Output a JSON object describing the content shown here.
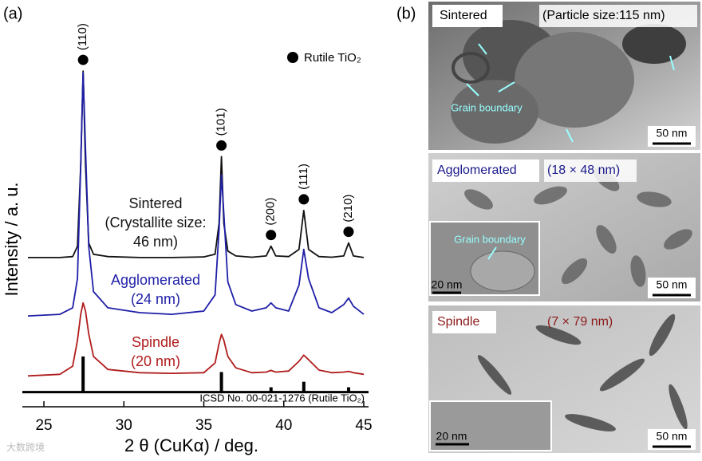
{
  "chart_data": {
    "type": "line",
    "panel_label": "(a)",
    "xlabel": "2 θ (CuKα) / deg.",
    "ylabel": "Intensity / a. u.",
    "xlim": [
      24,
      45
    ],
    "xticks": [
      25,
      30,
      35,
      40,
      45
    ],
    "ylim": [
      -5,
      100
    ],
    "x": [
      24,
      26,
      26.8,
      27.1,
      27.3,
      27.45,
      27.6,
      27.8,
      28.1,
      29,
      31,
      33,
      35,
      35.7,
      35.95,
      36.1,
      36.25,
      36.5,
      37,
      38,
      38.9,
      39.2,
      39.5,
      40.3,
      40.95,
      41.25,
      41.55,
      42.2,
      43,
      43.75,
      44.05,
      44.35,
      45
    ],
    "series": [
      {
        "name": "Sintered",
        "color": "#111111",
        "annotation": [
          "Sintered",
          "(Crystallite size:",
          "46 nm)"
        ],
        "values": [
          41.5,
          41.5,
          41.8,
          45,
          70,
          99,
          70,
          46,
          42.5,
          41.8,
          41.5,
          41.5,
          41.7,
          42.5,
          52,
          72.6,
          52,
          43.5,
          42,
          41.6,
          42,
          45,
          42,
          41.8,
          44,
          56,
          44,
          41.8,
          41.6,
          42,
          46,
          42,
          41.5
        ]
      },
      {
        "name": "Agglomerated",
        "color": "#1f1fa8",
        "annotation": [
          "Agglomerated",
          "(24 nm)"
        ],
        "values": [
          23.5,
          24,
          26,
          35,
          70,
          98.5,
          75,
          45,
          31,
          26,
          24.5,
          24,
          25,
          30,
          50,
          67,
          55,
          34,
          27,
          25,
          26,
          27.5,
          26,
          25,
          33,
          44,
          35,
          26,
          24.5,
          27,
          29,
          26.5,
          24
        ]
      },
      {
        "name": "Spindle",
        "color": "#b01c1c",
        "annotation": [
          "Spindle",
          "(20 nm)"
        ],
        "values": [
          5,
          5.5,
          8,
          16,
          24,
          27.5,
          25,
          18,
          11,
          7,
          6,
          5.8,
          6,
          9,
          15,
          17.8,
          16,
          11,
          7.5,
          6,
          6.2,
          6.7,
          6.2,
          6.5,
          9.5,
          11.4,
          10,
          6.8,
          6,
          6.2,
          6.4,
          6,
          5.5
        ]
      }
    ],
    "reference": {
      "name": "ICSD No. 00-021-1276 (Rutile TiO₂)",
      "x": [
        27.45,
        36.1,
        39.2,
        41.25,
        44.05
      ],
      "values": [
        11,
        6.2,
        1.5,
        3.2,
        1.5
      ]
    },
    "peaks": [
      "(110)",
      "(101)",
      "(200)",
      "(111)",
      "(210)"
    ],
    "legend": "Rutile TiO₂"
  },
  "images": {
    "panel_label": "(b)",
    "panels": [
      {
        "title": "Sintered",
        "size": "(Particle size:115 nm)",
        "note": "Grain boundary",
        "scale": "50 nm"
      },
      {
        "title": "Agglomerated",
        "size": "(18 × 48 nm)",
        "inset_note": "Grain boundary",
        "inset_scale": "20 nm",
        "scale": "50 nm"
      },
      {
        "title": "Spindle",
        "size": "(7 × 79 nm)",
        "inset_scale": "20 nm",
        "scale": "50 nm"
      }
    ]
  },
  "watermark": "大数跨境"
}
